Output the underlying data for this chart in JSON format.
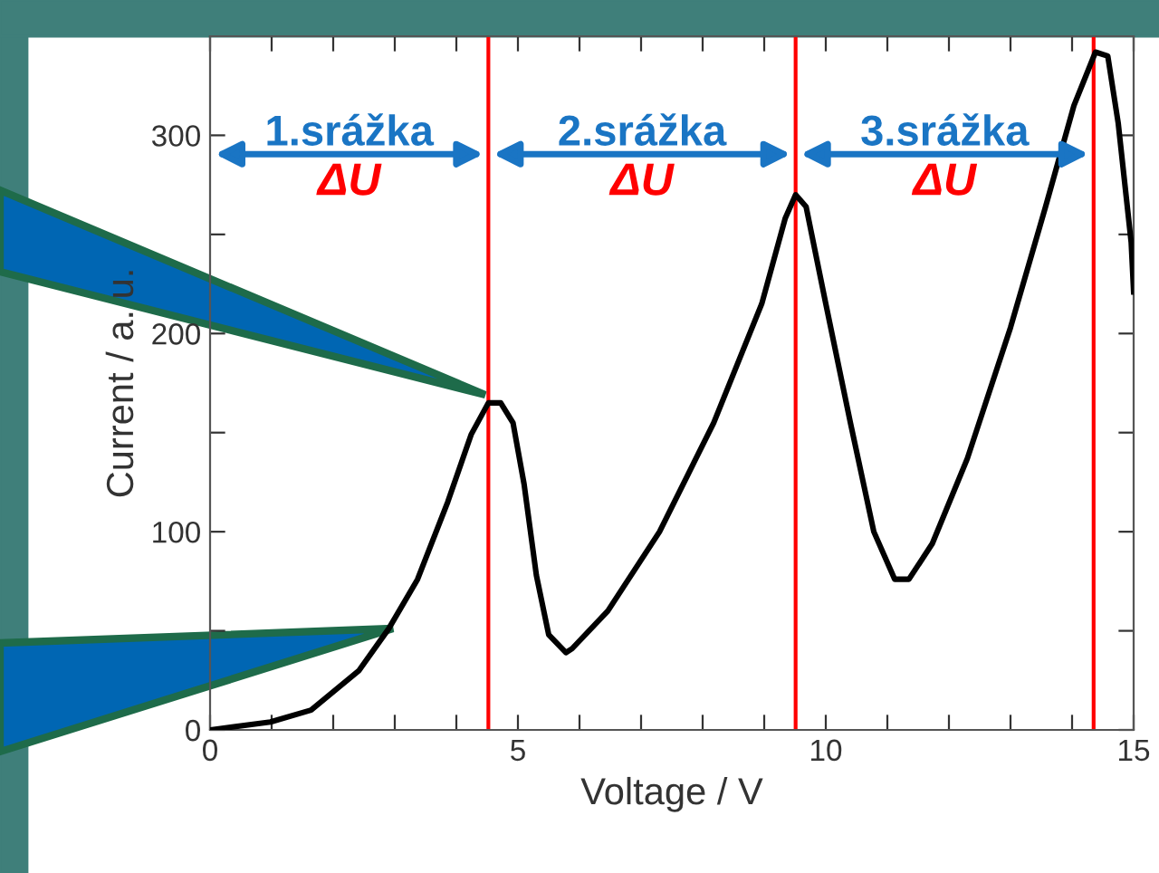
{
  "chart_data": {
    "type": "line",
    "xlabel": "Voltage / V",
    "ylabel": "Current / a. u.",
    "x": [
      0,
      0.98,
      1.64,
      2.42,
      2.9,
      3.37,
      3.86,
      4.24,
      4.52,
      4.72,
      4.92,
      5.1,
      5.3,
      5.5,
      5.78,
      5.88,
      6.46,
      7.3,
      8.18,
      8.96,
      9.34,
      9.51,
      9.68,
      10,
      10.4,
      10.78,
      11.12,
      11.35,
      11.73,
      12.3,
      13,
      13.57,
      14.03,
      14.38,
      14.58,
      14.75,
      14.96,
      15
    ],
    "series": [
      {
        "color": "#000000",
        "values": [
          0,
          4,
          10,
          30,
          51,
          76,
          115,
          149,
          165,
          165,
          155,
          124,
          78,
          48,
          39,
          41,
          60,
          100,
          155,
          215,
          258,
          270,
          264,
          215,
          155,
          100,
          76,
          76,
          94,
          137,
          203,
          264,
          315,
          342,
          340,
          306,
          246,
          221
        ]
      }
    ],
    "xlim": [
      0,
      15
    ],
    "ylim": [
      0,
      350
    ],
    "xticks": [
      0,
      {
        "value": 1,
        "label": null
      },
      {
        "value": 2,
        "label": null
      },
      {
        "value": 3,
        "label": null
      },
      {
        "value": 4,
        "label": null
      },
      5,
      {
        "value": 6,
        "label": null
      },
      {
        "value": 7,
        "label": null
      },
      {
        "value": 8,
        "label": null
      },
      {
        "value": 9,
        "label": null
      },
      10,
      {
        "value": 11,
        "label": null
      },
      {
        "value": 12,
        "label": null
      },
      {
        "value": 13,
        "label": null
      },
      {
        "value": 14,
        "label": null
      },
      15
    ],
    "yticks": [
      0,
      {
        "value": 50,
        "label": null
      },
      100,
      {
        "value": 150,
        "label": null
      },
      200,
      {
        "value": 250,
        "label": null
      },
      300
    ],
    "ref_lines": [
      {
        "axis": "x",
        "value": 4.52,
        "color": "#ff0000"
      },
      {
        "axis": "x",
        "value": 9.51,
        "color": "#ff0000"
      },
      {
        "axis": "x",
        "value": 14.35,
        "color": "#ff0000"
      }
    ],
    "annotations": [
      "1.srážka",
      "ΔU",
      "2.srážka",
      "ΔU",
      "3.srážka",
      "ΔU"
    ],
    "grid": false,
    "marker": "none",
    "line_style": "solid"
  }
}
